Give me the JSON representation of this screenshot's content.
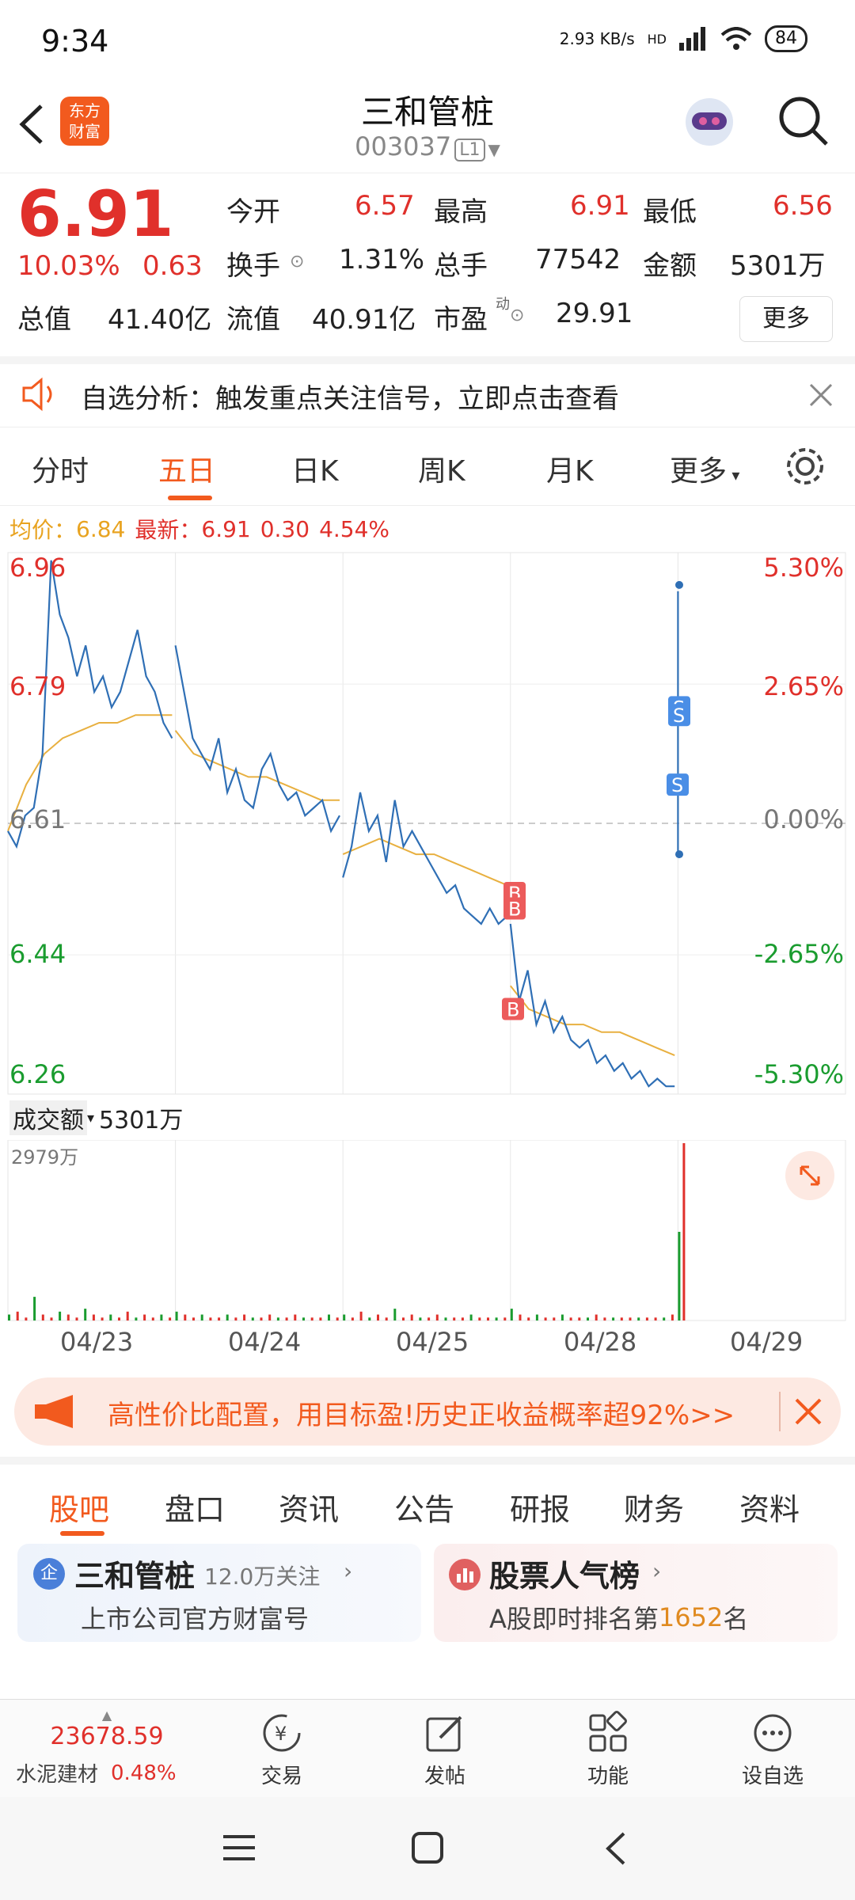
{
  "status_bar": {
    "time": "9:34",
    "net_speed": "2.93 KB/s",
    "net_hd": "HD",
    "battery": "84"
  },
  "header": {
    "title": "三和管桩",
    "code": "003037",
    "level_tag": "L1",
    "logo_line1": "东方",
    "logo_line2": "财富"
  },
  "quote": {
    "price": "6.91",
    "change_pct": "10.03%",
    "change": "0.63",
    "open_label": "今开",
    "open": "6.57",
    "high_label": "最高",
    "high": "6.91",
    "low_label": "最低",
    "low": "6.56",
    "turnover_label": "换手",
    "turnover": "1.31%",
    "volume_label": "总手",
    "volume": "77542",
    "amount_label": "金额",
    "amount": "5301万",
    "mcap_label": "总值",
    "mcap": "41.40亿",
    "float_label": "流值",
    "float": "40.91亿",
    "pe_label": "市盈",
    "pe_sup": "动",
    "pe": "29.91",
    "more": "更多"
  },
  "notice": {
    "text": "自选分析：触发重点关注信号，立即点击查看"
  },
  "tabs": [
    "分时",
    "五日",
    "日K",
    "周K",
    "月K",
    "更多"
  ],
  "active_tab": 1,
  "avg_line": {
    "avg_label": "均价：",
    "avg": "6.84",
    "latest_label": "最新：",
    "latest": "6.91",
    "change": "0.30",
    "pct": "4.54%"
  },
  "chart_data": {
    "type": "line",
    "y_left_ticks": [
      "6.96",
      "6.79",
      "6.61",
      "6.44",
      "6.26"
    ],
    "y_right_ticks": [
      "5.30%",
      "2.65%",
      "0.00%",
      "-2.65%",
      "-5.30%"
    ],
    "ylim": [
      6.26,
      6.96
    ],
    "x_dates": [
      "04/23",
      "04/24",
      "04/25",
      "04/28",
      "04/29"
    ],
    "price_series": [
      [
        6.6,
        6.58,
        6.62,
        6.63,
        6.7,
        6.95,
        6.88,
        6.85,
        6.8,
        6.84,
        6.78,
        6.8,
        6.76,
        6.78,
        6.82,
        6.86,
        6.8,
        6.78,
        6.74,
        6.72
      ],
      [
        6.84,
        6.78,
        6.72,
        6.7,
        6.68,
        6.72,
        6.65,
        6.68,
        6.64,
        6.63,
        6.68,
        6.7,
        6.66,
        6.64,
        6.65,
        6.62,
        6.63,
        6.64,
        6.6,
        6.62
      ],
      [
        6.54,
        6.58,
        6.65,
        6.6,
        6.62,
        6.56,
        6.64,
        6.58,
        6.6,
        6.58,
        6.56,
        6.54,
        6.52,
        6.53,
        6.5,
        6.49,
        6.48,
        6.5,
        6.48,
        6.49
      ],
      [
        6.48,
        6.38,
        6.42,
        6.35,
        6.38,
        6.34,
        6.36,
        6.33,
        6.32,
        6.33,
        6.3,
        6.31,
        6.29,
        6.3,
        6.28,
        6.29,
        6.27,
        6.28,
        6.27,
        6.27
      ],
      [
        6.57,
        6.91
      ]
    ],
    "avg_series": [
      [
        6.6,
        6.66,
        6.7,
        6.72,
        6.73,
        6.74,
        6.74,
        6.75,
        6.75,
        6.75
      ],
      [
        6.73,
        6.7,
        6.69,
        6.68,
        6.67,
        6.67,
        6.66,
        6.65,
        6.64,
        6.64
      ],
      [
        6.57,
        6.58,
        6.59,
        6.58,
        6.57,
        6.57,
        6.56,
        6.55,
        6.54,
        6.53
      ],
      [
        6.4,
        6.37,
        6.36,
        6.35,
        6.35,
        6.34,
        6.34,
        6.33,
        6.32,
        6.31
      ]
    ],
    "signals": [
      {
        "day": 3,
        "label": "B"
      },
      {
        "day": 3,
        "label": "B"
      },
      {
        "day": 3,
        "label": "B"
      },
      {
        "day": 4,
        "label": "S"
      },
      {
        "day": 4,
        "label": "S"
      },
      {
        "day": 4,
        "label": "S"
      }
    ],
    "volume_label": "成交额",
    "volume_value": "5301万",
    "volume_max": "2979万",
    "volume_series": [
      [
        2,
        3,
        1,
        8,
        2,
        1,
        3,
        2,
        1,
        4,
        2,
        1,
        2,
        1,
        3,
        1,
        2,
        1,
        2,
        1
      ],
      [
        3,
        2,
        1,
        2,
        1,
        1,
        2,
        1,
        2,
        1,
        1,
        2,
        1,
        1,
        2,
        1,
        1,
        1,
        2,
        1
      ],
      [
        2,
        1,
        3,
        1,
        2,
        1,
        4,
        1,
        2,
        1,
        1,
        2,
        1,
        1,
        1,
        2,
        1,
        1,
        1,
        1
      ],
      [
        4,
        2,
        1,
        2,
        1,
        1,
        2,
        1,
        1,
        1,
        2,
        1,
        1,
        1,
        1,
        1,
        1,
        1,
        1,
        2
      ],
      [
        30,
        60
      ]
    ],
    "volume_max_value": 60
  },
  "promo": {
    "text": "高性价比配置，用目标盈!历史正收益概率超92%>>"
  },
  "bottom_tabs": [
    "股吧",
    "盘口",
    "资讯",
    "公告",
    "研报",
    "财务",
    "资料"
  ],
  "bottom_active": 0,
  "card_left": {
    "title": "三和管桩",
    "follow": "12.0万关注",
    "sub": "上市公司官方财富号",
    "badge": "企"
  },
  "card_right": {
    "title": "股票人气榜",
    "sub_prefix": "A股即时排名第",
    "rank": "1652",
    "sub_suffix": "名"
  },
  "footer": {
    "index_value": "23678.59",
    "index_name": "水泥建材",
    "index_pct": "0.48%",
    "items": [
      "交易",
      "发帖",
      "功能",
      "设自选"
    ]
  },
  "colors": {
    "accent": "#f25a1e",
    "up": "#e0302b",
    "down": "#1a9c2f",
    "line": "#2f6fb5",
    "avg": "#e8b040"
  }
}
